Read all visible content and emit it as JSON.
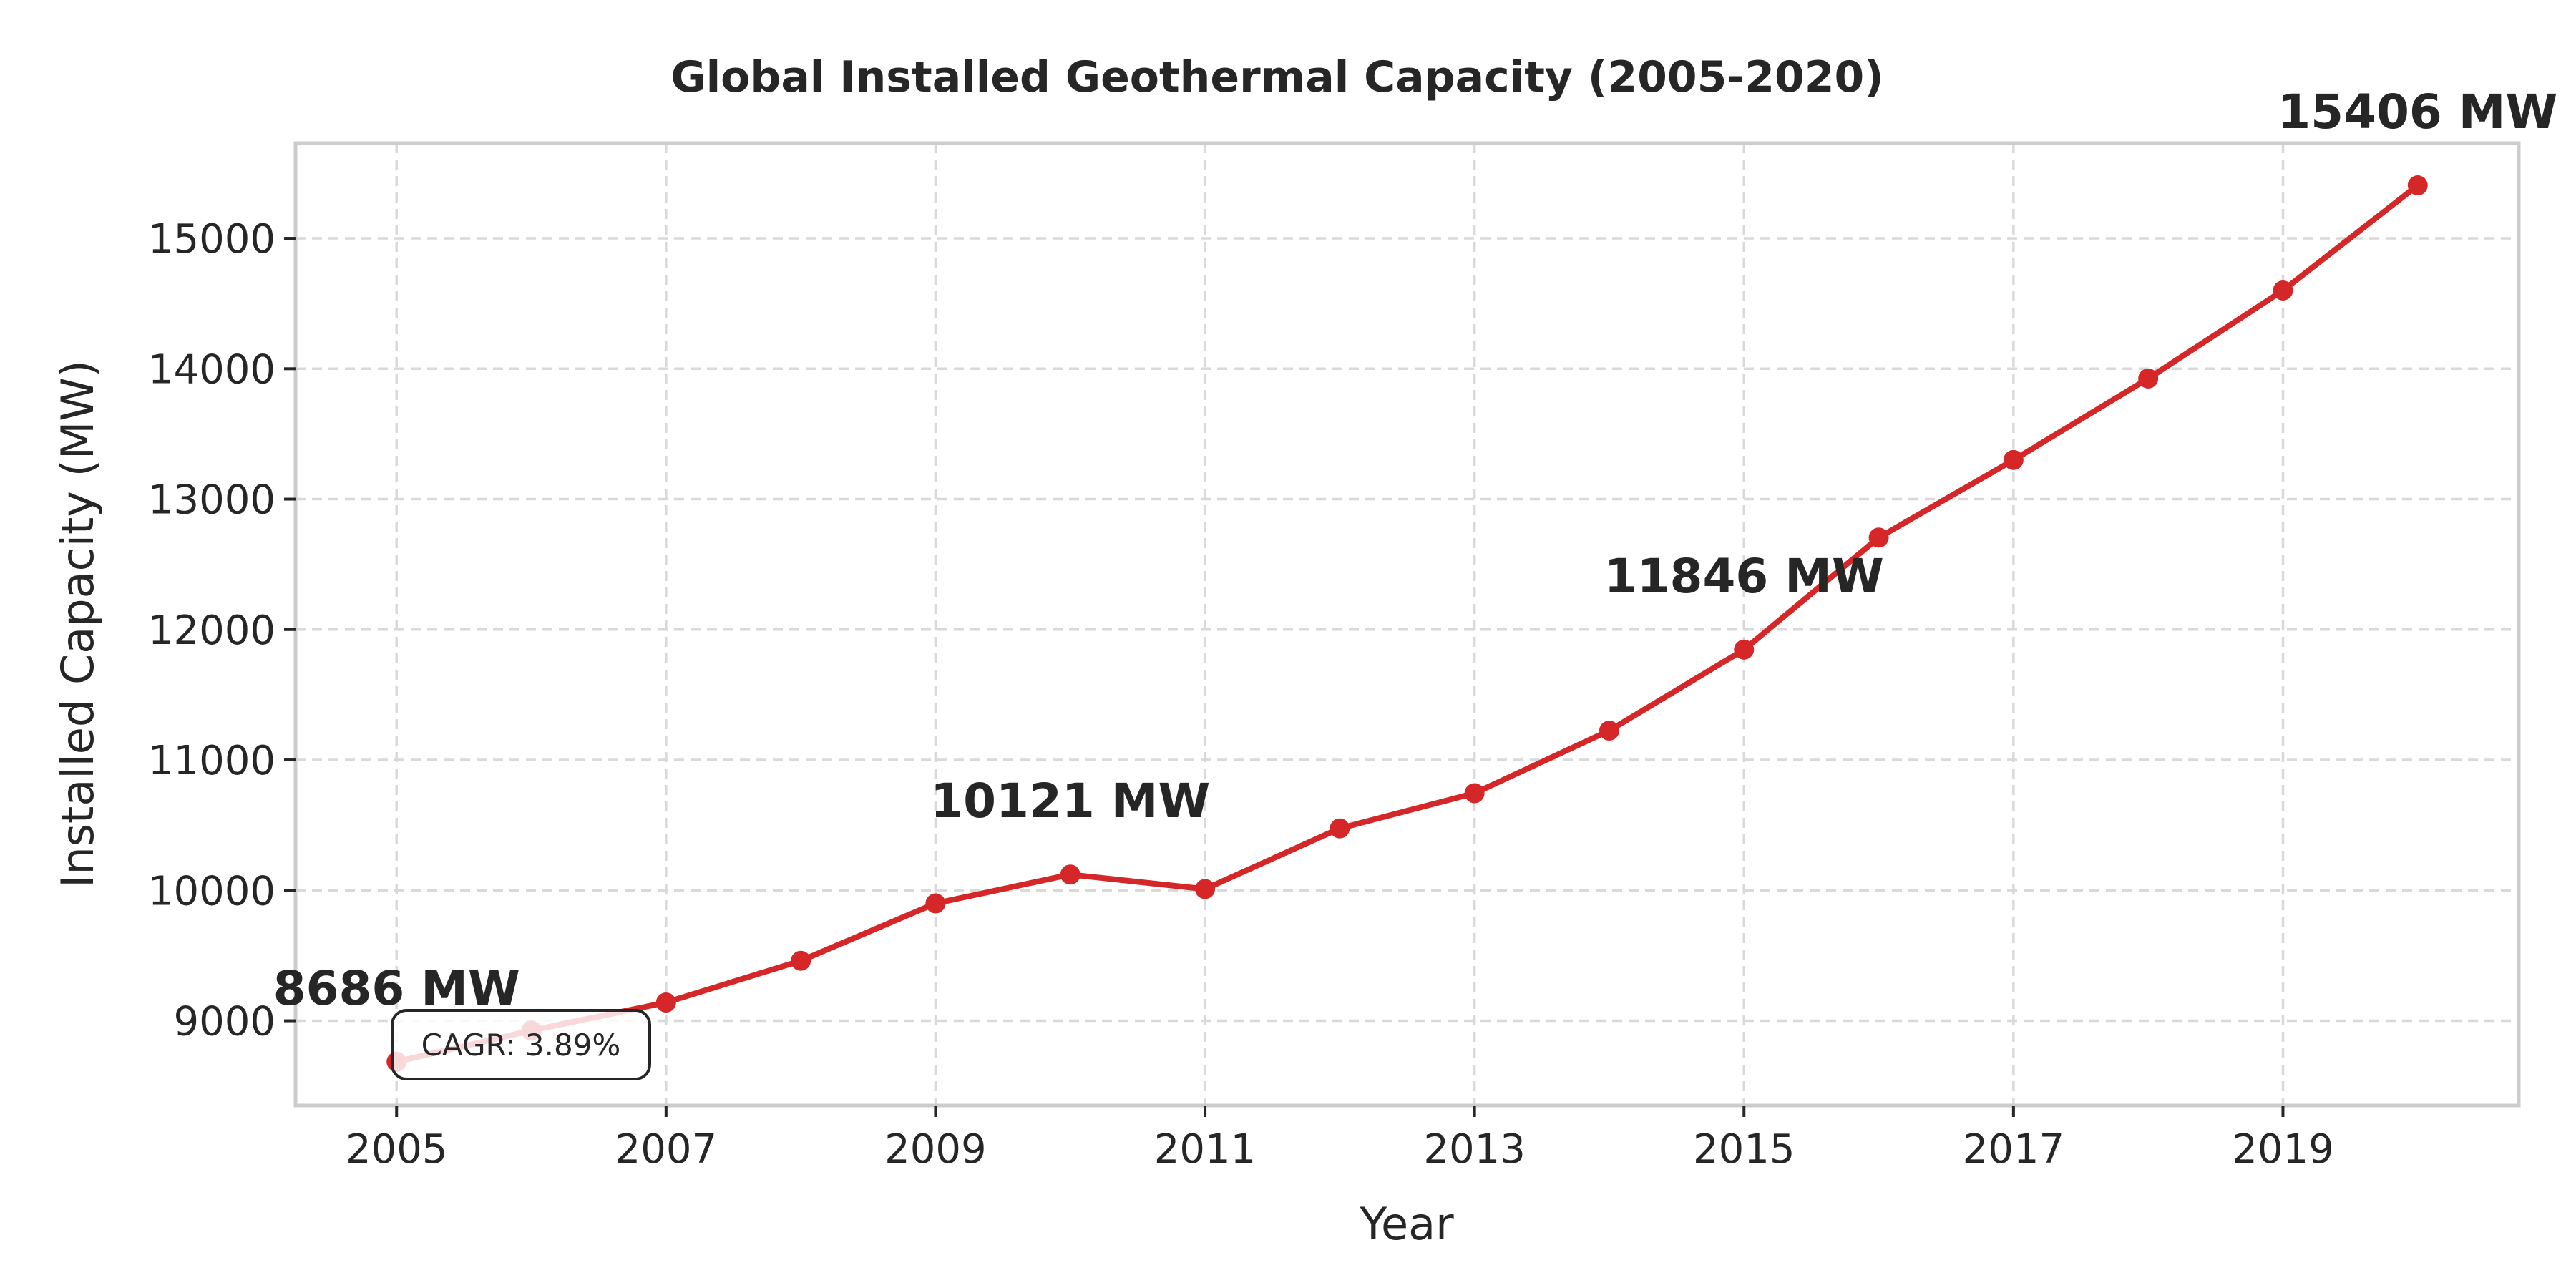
{
  "chart_data": {
    "type": "line",
    "title": "Global Installed Geothermal Capacity (2005-2020)",
    "xlabel": "Year",
    "ylabel": "Installed Capacity (MW)",
    "x": [
      2005,
      2006,
      2007,
      2008,
      2009,
      2010,
      2011,
      2012,
      2013,
      2014,
      2015,
      2016,
      2017,
      2018,
      2019,
      2020
    ],
    "series": [
      {
        "values": [
          8686,
          8925,
          9140,
          9460,
          9900,
          10121,
          10010,
          10475,
          10745,
          11225,
          11846,
          12705,
          13300,
          13925,
          14600,
          15406
        ],
        "color": "#d62728"
      }
    ],
    "xlim": [
      2004.25,
      2020.75
    ],
    "ylim": [
      8350,
      15730
    ],
    "xticks": [
      2005,
      2007,
      2009,
      2011,
      2013,
      2015,
      2017,
      2019
    ],
    "xtick_labels": [
      "2005",
      "2007",
      "2009",
      "2011",
      "2013",
      "2015",
      "2017",
      "2019"
    ],
    "yticks": [
      9000,
      10000,
      11000,
      12000,
      13000,
      14000,
      15000
    ],
    "ytick_labels": [
      "9000",
      "10000",
      "11000",
      "12000",
      "13000",
      "14000",
      "15000"
    ],
    "grid": true,
    "annotations": [
      {
        "x": 2005,
        "y": 8686,
        "text": "8686 MW"
      },
      {
        "x": 2010,
        "y": 10121,
        "text": "10121 MW"
      },
      {
        "x": 2015,
        "y": 11846,
        "text": "11846 MW"
      },
      {
        "x": 2020,
        "y": 15406,
        "text": "15406 MW"
      }
    ],
    "callout": "CAGR: 3.89%"
  }
}
